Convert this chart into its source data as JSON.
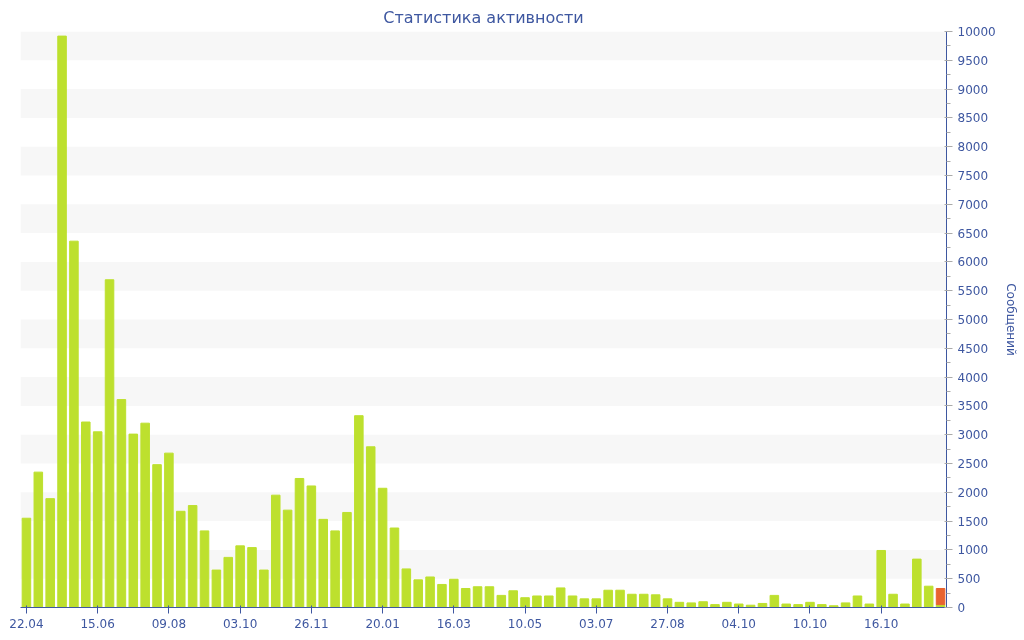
{
  "chart_data": {
    "type": "bar",
    "title": "Статистика активности",
    "ylabel": "Сообщений",
    "stacked": true,
    "categories": [
      "22.04",
      null,
      null,
      null,
      null,
      null,
      "15.06",
      null,
      null,
      null,
      null,
      null,
      "09.08",
      null,
      null,
      null,
      null,
      null,
      "03.10",
      null,
      null,
      null,
      null,
      null,
      "26.11",
      null,
      null,
      null,
      null,
      null,
      "20.01",
      null,
      null,
      null,
      null,
      null,
      "16.03",
      null,
      null,
      null,
      null,
      null,
      "10.05",
      null,
      null,
      null,
      null,
      null,
      "03.07",
      null,
      null,
      null,
      null,
      null,
      "27.08",
      null,
      null,
      null,
      null,
      null,
      "04.10",
      null,
      null,
      null,
      null,
      null,
      "10.10",
      null,
      null,
      null,
      null,
      null,
      "16.10",
      null,
      null,
      null,
      null,
      null
    ],
    "series": [
      {
        "color": "#bde02e",
        "values": [
          1550,
          2350,
          1890,
          9920,
          6360,
          3220,
          3050,
          5690,
          3610,
          3010,
          3200,
          2480,
          2680,
          1670,
          1770,
          1330,
          650,
          870,
          1070,
          1040,
          650,
          1950,
          1690,
          2240,
          2110,
          1530,
          1330,
          1650,
          3330,
          2790,
          2070,
          1380,
          670,
          480,
          530,
          400,
          490,
          330,
          360,
          360,
          210,
          290,
          170,
          200,
          200,
          340,
          200,
          150,
          150,
          300,
          300,
          230,
          230,
          220,
          150,
          90,
          80,
          100,
          50,
          90,
          60,
          40,
          70,
          210,
          60,
          50,
          90,
          50,
          30,
          80,
          200,
          60,
          990,
          230,
          60,
          840,
          370,
          50
        ]
      },
      {
        "color": "#e8632f",
        "values": [
          null,
          null,
          null,
          null,
          null,
          null,
          null,
          null,
          null,
          null,
          null,
          null,
          null,
          null,
          null,
          null,
          null,
          null,
          null,
          null,
          null,
          null,
          null,
          null,
          null,
          null,
          null,
          null,
          null,
          null,
          null,
          null,
          null,
          null,
          null,
          null,
          null,
          null,
          null,
          null,
          null,
          null,
          null,
          null,
          null,
          null,
          null,
          null,
          null,
          null,
          null,
          null,
          null,
          null,
          null,
          null,
          null,
          null,
          null,
          null,
          null,
          null,
          null,
          null,
          null,
          null,
          null,
          null,
          null,
          null,
          null,
          null,
          null,
          null,
          null,
          null,
          null,
          280
        ]
      }
    ],
    "ylim": [
      0,
      10000
    ],
    "yticks": [
      0,
      500,
      1000,
      1500,
      2000,
      2500,
      3000,
      3500,
      4000,
      4500,
      5000,
      5500,
      6000,
      6500,
      7000,
      7500,
      8000,
      8500,
      9000,
      9500,
      10000
    ],
    "grid": false
  }
}
